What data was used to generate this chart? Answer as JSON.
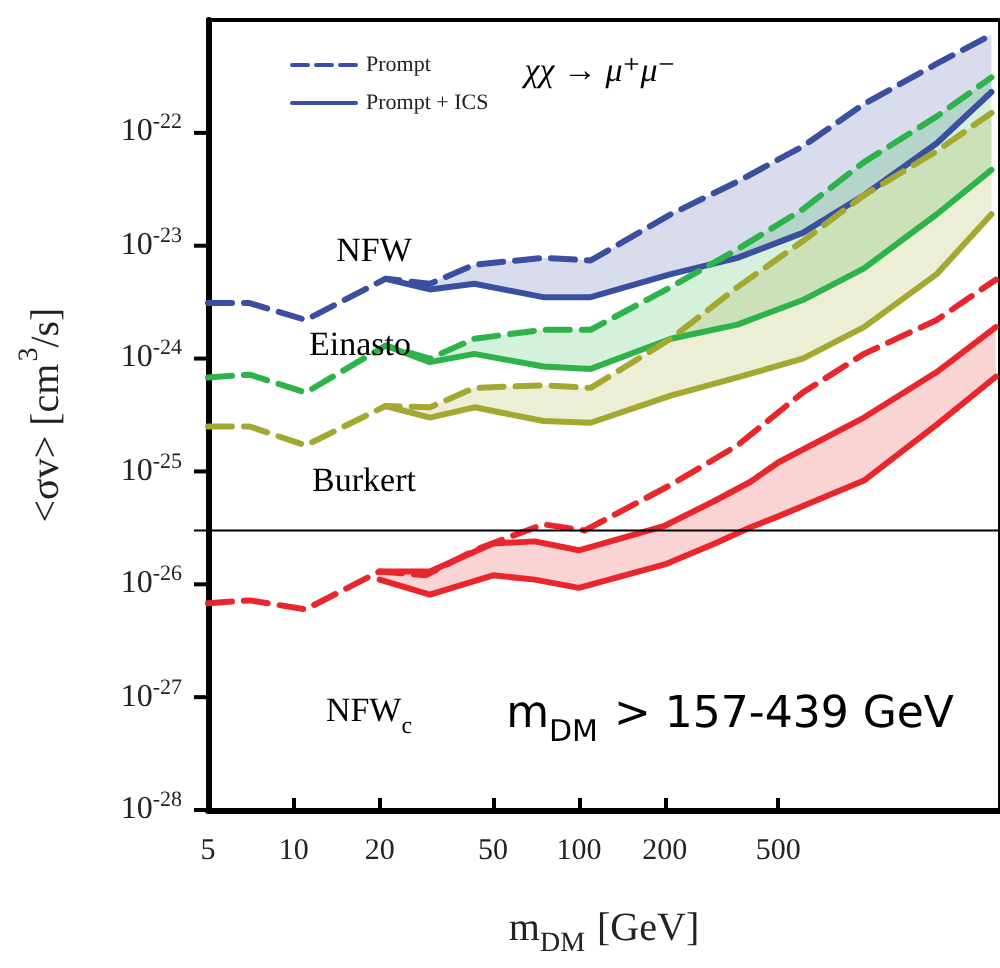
{
  "chart_data": {
    "type": "line",
    "xlabel": "m$_{DM}$ [GeV]",
    "ylabel": "<σv> [cm$^{3}$/s]",
    "log": "xy",
    "grid": false,
    "legend": "top left",
    "marker": "none",
    "xlim": [
      5,
      3000
    ],
    "xticks": [
      5,
      10,
      20,
      50,
      100,
      200,
      500
    ],
    "ylim": [
      1e-28,
      1e-21
    ],
    "yticks": [
      {
        "value": 1e-28,
        "label": "10$^{-28}$"
      },
      {
        "value": 1e-27,
        "label": "10$^{-27}$"
      },
      {
        "value": 1e-26,
        "label": "10$^{-26}$"
      },
      {
        "value": 1e-25,
        "label": "10$^{-25}$"
      },
      {
        "value": 1e-24,
        "label": "10$^{-24}$"
      },
      {
        "value": 1e-23,
        "label": "10$^{-23}$"
      },
      {
        "value": 1e-22,
        "label": "10$^{-22}$"
      }
    ],
    "x": [
      5,
      7,
      11,
      21,
      30,
      43,
      75,
      110,
      210,
      360,
      610,
      1000,
      1800,
      2800
    ],
    "series": [
      {
        "name": "Prompt",
        "color": "#3a4fa0",
        "line_style": "dashed",
        "values": [
          3.1e-24,
          3.1e-24,
          2.2e-24,
          5.1e-24,
          4.6e-24,
          6.8e-24,
          7.8e-24,
          7.4e-24,
          1.9e-23,
          3.7e-23,
          7.6e-23,
          1.8e-22,
          4.1e-22,
          7.4e-22
        ]
      },
      {
        "name": "Prompt + ICS",
        "color": "#3a4fa0",
        "line_style": "solid",
        "values": [
          null,
          null,
          null,
          5.1e-24,
          4.1e-24,
          4.6e-24,
          3.5e-24,
          3.5e-24,
          5.6e-24,
          7.8e-24,
          1.3e-23,
          2.8e-23,
          8.1e-23,
          2.3e-22
        ],
        "lower": [
          null,
          null,
          null,
          5.1e-24,
          4.1e-24,
          4.6e-24,
          3.5e-24,
          3.5e-24,
          5.6e-24,
          7.8e-24,
          1.3e-23,
          2.8e-23,
          8.1e-23,
          2.3e-22
        ],
        "upper": [
          null,
          null,
          null,
          5.1e-24,
          4.6e-24,
          6.8e-24,
          7.8e-24,
          7.4e-24,
          1.9e-23,
          3.7e-23,
          7.6e-23,
          1.8e-22,
          4.1e-22,
          7.4e-22
        ]
      },
      {
        "color": "#2db34a",
        "line_style": "dashed",
        "values": [
          6.8e-25,
          7.2e-25,
          5e-25,
          1.3e-24,
          1e-24,
          1.5e-24,
          1.8e-24,
          1.8e-24,
          4.3e-24,
          9.3e-24,
          2.1e-23,
          5.5e-23,
          1.4e-22,
          3.1e-22
        ]
      },
      {
        "color": "#2db34a",
        "line_style": "solid",
        "values": [
          null,
          null,
          null,
          1.3e-24,
          9.3e-25,
          1.1e-24,
          8.5e-25,
          8.1e-25,
          1.5e-24,
          2e-24,
          3.3e-24,
          6.3e-24,
          1.9e-23,
          4.7e-23
        ],
        "lower": [
          null,
          null,
          null,
          1.3e-24,
          9.3e-25,
          1.1e-24,
          8.5e-25,
          8.1e-25,
          1.5e-24,
          2e-24,
          3.3e-24,
          6.3e-24,
          1.9e-23,
          4.7e-23
        ],
        "upper": [
          null,
          null,
          null,
          1.3e-24,
          1e-24,
          1.5e-24,
          1.8e-24,
          1.8e-24,
          4.3e-24,
          9.3e-24,
          2.1e-23,
          5.5e-23,
          1.4e-22,
          3.1e-22
        ]
      },
      {
        "color": "#a5a830",
        "line_style": "dashed",
        "values": [
          2.5e-25,
          2.5e-25,
          1.7e-25,
          3.8e-25,
          3.7e-25,
          5.5e-25,
          5.8e-25,
          5.5e-25,
          1.5e-24,
          4.3e-24,
          1.1e-23,
          2.8e-23,
          6.9e-23,
          1.5e-22
        ]
      },
      {
        "color": "#a5a830",
        "line_style": "solid",
        "values": [
          null,
          null,
          null,
          3.8e-25,
          3e-25,
          3.7e-25,
          2.8e-25,
          2.7e-25,
          4.7e-25,
          6.8e-25,
          1e-24,
          1.9e-24,
          5.6e-24,
          1.9e-23
        ],
        "lower": [
          null,
          null,
          null,
          3.8e-25,
          3e-25,
          3.7e-25,
          2.8e-25,
          2.7e-25,
          4.7e-25,
          6.8e-25,
          1e-24,
          1.9e-24,
          5.6e-24,
          1.9e-23
        ],
        "upper": [
          null,
          null,
          null,
          3.8e-25,
          3.7e-25,
          5.5e-25,
          5.8e-25,
          5.5e-25,
          1.5e-24,
          4.3e-24,
          1.1e-23,
          2.8e-23,
          6.9e-23,
          1.5e-22
        ]
      },
      {
        "color": "#e8262b",
        "line_style": "dashed",
        "x": [
          5,
          7,
          11,
          20,
          29,
          43,
          75,
          105,
          210,
          360,
          610,
          1000,
          1800,
          2900
        ],
        "values": [
          6.8e-27,
          7.2e-27,
          6e-27,
          1.3e-26,
          1.2e-26,
          2e-26,
          3.4e-26,
          3e-26,
          7.6e-26,
          1.7e-25,
          5e-25,
          1.1e-24,
          2.2e-24,
          5e-24
        ]
      },
      {
        "color": "#e8262b",
        "line_style": "solid",
        "x": [
          20,
          30,
          50,
          70,
          100,
          200,
          300,
          400,
          500,
          1000,
          1800,
          2900
        ],
        "values": [
          1.3e-26,
          1.3e-26,
          2.3e-26,
          2.4e-26,
          2e-26,
          3.3e-26,
          5.5e-26,
          8.1e-26,
          1.2e-25,
          3e-25,
          7.6e-25,
          1.9e-24
        ]
      },
      {
        "color": "#e8262b",
        "line_style": "solid",
        "x": [
          20,
          30,
          50,
          70,
          100,
          200,
          300,
          400,
          500,
          1000,
          1800,
          2900
        ],
        "values": [
          1.1e-26,
          8.1e-27,
          1.2e-26,
          1.1e-26,
          9.3e-27,
          1.5e-26,
          2.3e-26,
          3.2e-26,
          4e-26,
          8.3e-26,
          2.6e-25,
          6.9e-25
        ],
        "lower": [
          1.1e-26,
          8.1e-27,
          1.2e-26,
          1.1e-26,
          9.3e-27,
          1.5e-26,
          2.3e-26,
          3.2e-26,
          4e-26,
          8.3e-26,
          2.6e-25,
          6.9e-25
        ],
        "upper": [
          1.3e-26,
          1.3e-26,
          2.3e-26,
          2.4e-26,
          2e-26,
          3.3e-26,
          5.5e-26,
          8.1e-26,
          1.2e-25,
          3e-25,
          7.6e-25,
          1.9e-24
        ]
      }
    ],
    "ref_lines": [
      {
        "axis": "y",
        "value": 3e-26,
        "color": "#000000",
        "line_style": "solid"
      }
    ],
    "annotations": [
      "NFW",
      "Einasto",
      "Burkert",
      "NFW$_{c}$",
      "χχ → μ⁺μ⁻",
      "m$_{DM}$ > 157-439 GeV"
    ]
  }
}
